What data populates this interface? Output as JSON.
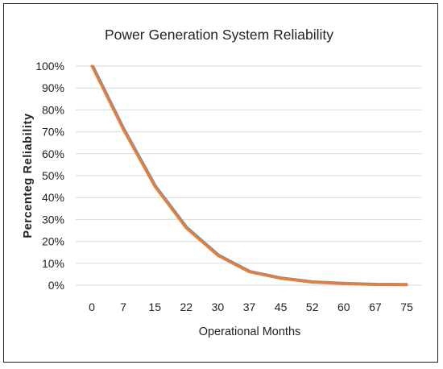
{
  "chart_data": {
    "type": "line",
    "title": "Power Generation System Reliability",
    "xlabel": "Operational Months",
    "ylabel": "Percenteg Reliability",
    "x": [
      0,
      7,
      15,
      22,
      30,
      37,
      45,
      52,
      60,
      67,
      75
    ],
    "series": [
      {
        "values": [
          100,
          71,
          45,
          26,
          13.5,
          6,
          3,
          1.3,
          0.6,
          0.2,
          0.1
        ],
        "color": "#ed7d31",
        "shadow_color": "#7f8fa6"
      }
    ],
    "y_ticks": [
      "0%",
      "10%",
      "20%",
      "30%",
      "40%",
      "50%",
      "60%",
      "70%",
      "80%",
      "90%",
      "100%"
    ],
    "x_ticks": [
      "0",
      "7",
      "15",
      "22",
      "30",
      "37",
      "45",
      "52",
      "60",
      "67",
      "75"
    ],
    "ylim": [
      0,
      100
    ],
    "grid": "horizontal",
    "gridline_color": "#d9d9d9",
    "legend": "none"
  }
}
